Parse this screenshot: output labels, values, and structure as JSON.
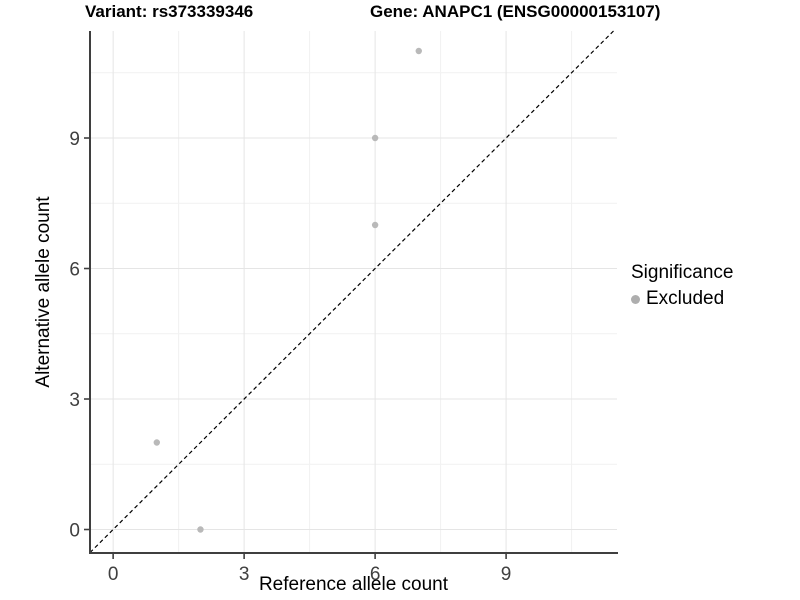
{
  "title": {
    "left": "Variant: rs373339346",
    "right": "Gene: ANAPC1 (ENSG00000153107)"
  },
  "chart_data": {
    "type": "scatter",
    "title": "Variant: rs373339346   Gene: ANAPC1 (ENSG00000153107)",
    "xlabel": "Reference allele count",
    "ylabel": "Alternative allele count",
    "xlim": [
      -0.53,
      11.54
    ],
    "ylim": [
      -0.54,
      11.46
    ],
    "x_ticks": [
      0,
      3,
      6,
      9
    ],
    "y_ticks": [
      0,
      3,
      6,
      9
    ],
    "x_minor_ticks": [
      1.5,
      4.5,
      7.5,
      10.5
    ],
    "y_minor_ticks": [
      1.5,
      4.5,
      7.5,
      10.5
    ],
    "grid": true,
    "identity_line": {
      "slope": 1,
      "intercept": 0,
      "style": "dashed",
      "color": "#000000"
    },
    "series": [
      {
        "name": "Excluded",
        "color": "#b9b9b9",
        "points": [
          {
            "x": 1,
            "y": 2
          },
          {
            "x": 2,
            "y": 0
          },
          {
            "x": 6,
            "y": 7
          },
          {
            "x": 6,
            "y": 9
          },
          {
            "x": 7,
            "y": 11
          }
        ]
      }
    ],
    "legend": {
      "title": "Significance",
      "position": "right",
      "items": [
        {
          "label": "Excluded",
          "color": "#aeaeae"
        }
      ]
    }
  },
  "colors": {
    "background": "#ffffff",
    "grid_major": "#e5e5e5",
    "grid_minor": "#f1f1f1",
    "axis_line": "#3f3f3f",
    "tick_label": "#404040",
    "point": "#b9b9b9",
    "legend_dot": "#aeaeae",
    "identity_line": "#000000"
  }
}
